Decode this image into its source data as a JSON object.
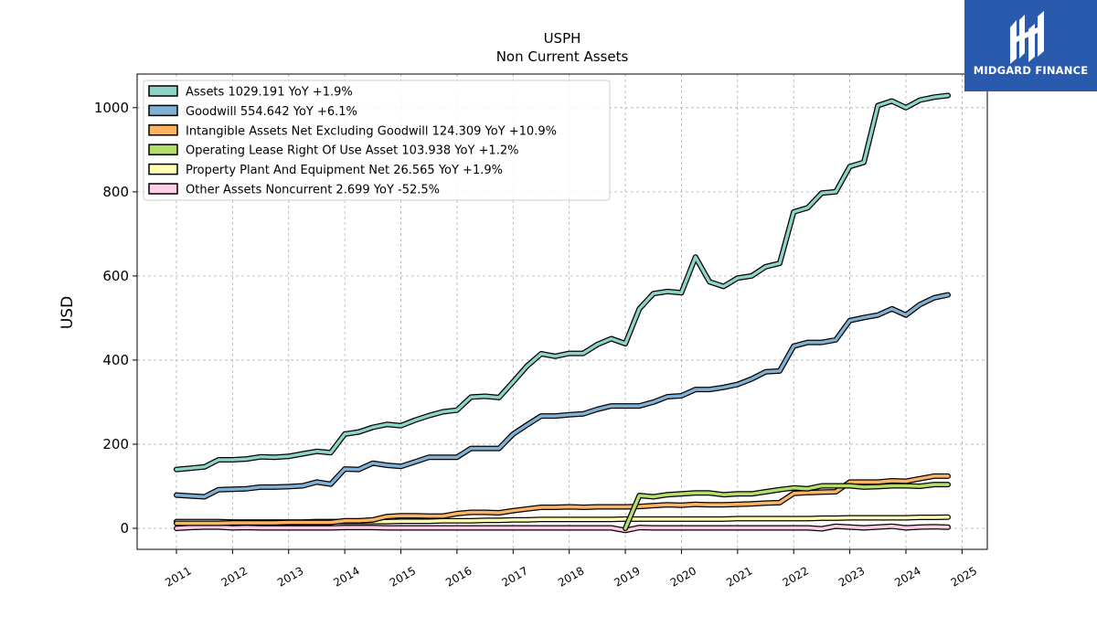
{
  "brand": {
    "name": "MIDGARD FINANCE",
    "bg_color": "#2a5aad",
    "icon": "midgard-logo-icon"
  },
  "chart_data": {
    "type": "line",
    "title": "USPH",
    "subtitle": "Non Current  Assets",
    "ylabel": "USD",
    "xlabel": "",
    "xlim": [
      2010.3,
      2025.45
    ],
    "ylim": [
      -50,
      1080
    ],
    "yticks": [
      0,
      200,
      400,
      600,
      800,
      1000
    ],
    "xticks": [
      2011,
      2012,
      2013,
      2014,
      2015,
      2016,
      2017,
      2018,
      2019,
      2020,
      2021,
      2022,
      2023,
      2024,
      2025
    ],
    "grid": true,
    "legend_position": "top-left",
    "series": [
      {
        "name": "Assets",
        "legend": "Assets  1029.191 YoY +1.9%",
        "color": "#8dd3c7",
        "x": [
          2011.0,
          2011.25,
          2011.5,
          2011.75,
          2012.0,
          2012.25,
          2012.5,
          2012.75,
          2013.0,
          2013.25,
          2013.5,
          2013.75,
          2014.0,
          2014.25,
          2014.5,
          2014.75,
          2015.0,
          2015.25,
          2015.5,
          2015.75,
          2016.0,
          2016.25,
          2016.5,
          2016.75,
          2017.0,
          2017.25,
          2017.5,
          2017.75,
          2018.0,
          2018.25,
          2018.5,
          2018.75,
          2019.0,
          2019.25,
          2019.5,
          2019.75,
          2020.0,
          2020.25,
          2020.5,
          2020.75,
          2021.0,
          2021.25,
          2021.5,
          2021.75,
          2022.0,
          2022.25,
          2022.5,
          2022.75,
          2023.0,
          2023.25,
          2023.5,
          2023.75,
          2024.0,
          2024.25,
          2024.5,
          2024.75
        ],
        "y": [
          140,
          143,
          146,
          163,
          163,
          165,
          170,
          169,
          171,
          177,
          183,
          180,
          224,
          229,
          240,
          247,
          244,
          257,
          268,
          277,
          281,
          312,
          314,
          311,
          348,
          386,
          415,
          409,
          416,
          416,
          437,
          451,
          439,
          522,
          558,
          563,
          560,
          645,
          586,
          575,
          595,
          600,
          622,
          630,
          752,
          762,
          797,
          800,
          860,
          870,
          1005,
          1016,
          1000,
          1018,
          1025,
          1029
        ]
      },
      {
        "name": "Goodwill",
        "legend": "Goodwill  554.642 YoY +6.1%",
        "color": "#80b1d3",
        "x": [
          2011.0,
          2011.25,
          2011.5,
          2011.75,
          2012.0,
          2012.25,
          2012.5,
          2012.75,
          2013.0,
          2013.25,
          2013.5,
          2013.75,
          2014.0,
          2014.25,
          2014.5,
          2014.75,
          2015.0,
          2015.25,
          2015.5,
          2015.75,
          2016.0,
          2016.25,
          2016.5,
          2016.75,
          2017.0,
          2017.25,
          2017.5,
          2017.75,
          2018.0,
          2018.25,
          2018.5,
          2018.75,
          2019.0,
          2019.25,
          2019.5,
          2019.75,
          2020.0,
          2020.25,
          2020.5,
          2020.75,
          2021.0,
          2021.25,
          2021.5,
          2021.75,
          2022.0,
          2022.25,
          2022.5,
          2022.75,
          2023.0,
          2023.25,
          2023.5,
          2023.75,
          2024.0,
          2024.25,
          2024.5,
          2024.75
        ],
        "y": [
          79,
          77,
          75,
          92,
          93,
          94,
          98,
          98,
          99,
          101,
          110,
          105,
          141,
          140,
          155,
          150,
          147,
          158,
          169,
          169,
          169,
          190,
          190,
          190,
          224,
          246,
          267,
          267,
          270,
          272,
          283,
          291,
          291,
          291,
          300,
          313,
          315,
          330,
          330,
          335,
          342,
          355,
          372,
          374,
          433,
          442,
          442,
          448,
          494,
          501,
          507,
          522,
          507,
          532,
          548,
          555
        ]
      },
      {
        "name": "Intangible Assets Net Excluding Goodwill",
        "legend": "Intangible Assets Net Excluding Goodwill  124.309 YoY +10.9%",
        "color": "#fdb462",
        "x": [
          2011.0,
          2011.25,
          2011.5,
          2011.75,
          2012.0,
          2012.25,
          2012.5,
          2012.75,
          2013.0,
          2013.25,
          2013.5,
          2013.75,
          2014.0,
          2014.25,
          2014.5,
          2014.75,
          2015.0,
          2015.25,
          2015.5,
          2015.75,
          2016.0,
          2016.25,
          2016.5,
          2016.75,
          2017.0,
          2017.25,
          2017.5,
          2017.75,
          2018.0,
          2018.25,
          2018.5,
          2018.75,
          2019.0,
          2019.25,
          2019.5,
          2019.75,
          2020.0,
          2020.25,
          2020.5,
          2020.75,
          2021.0,
          2021.25,
          2021.5,
          2021.75,
          2022.0,
          2022.25,
          2022.5,
          2022.75,
          2023.0,
          2023.25,
          2023.5,
          2023.75,
          2024.0,
          2024.25,
          2024.5,
          2024.75
        ],
        "y": [
          12,
          12,
          12,
          12,
          13,
          13,
          13,
          13,
          14,
          14,
          14,
          14,
          18,
          18,
          20,
          28,
          30,
          30,
          29,
          29,
          35,
          38,
          38,
          37,
          42,
          46,
          50,
          50,
          51,
          50,
          51,
          51,
          51,
          52,
          54,
          56,
          55,
          57,
          56,
          56,
          57,
          58,
          60,
          61,
          83,
          85,
          86,
          87,
          110,
          110,
          110,
          113,
          112,
          118,
          124,
          124
        ]
      },
      {
        "name": "Operating Lease Right Of Use Asset",
        "legend": "Operating Lease Right Of Use Asset  103.938 YoY +1.2%",
        "color": "#b3de69",
        "x": [
          2019.0,
          2019.25,
          2019.5,
          2019.75,
          2020.0,
          2020.25,
          2020.5,
          2020.75,
          2021.0,
          2021.25,
          2021.5,
          2021.75,
          2022.0,
          2022.25,
          2022.5,
          2022.75,
          2023.0,
          2023.25,
          2023.5,
          2023.75,
          2024.0,
          2024.25,
          2024.5,
          2024.75
        ],
        "y": [
          0,
          78,
          75,
          80,
          82,
          84,
          84,
          80,
          82,
          82,
          87,
          92,
          96,
          94,
          101,
          101,
          101,
          98,
          99,
          101,
          101,
          100,
          104,
          104
        ]
      },
      {
        "name": "Property Plant And Equipment Net",
        "legend": "Property Plant And Equipment Net  26.565 YoY +1.9%",
        "color": "#ffffb3",
        "x": [
          2011.0,
          2011.25,
          2011.5,
          2011.75,
          2012.0,
          2012.25,
          2012.5,
          2012.75,
          2013.0,
          2013.25,
          2013.5,
          2013.75,
          2014.0,
          2014.25,
          2014.5,
          2014.75,
          2015.0,
          2015.25,
          2015.5,
          2015.75,
          2016.0,
          2016.25,
          2016.5,
          2016.75,
          2017.0,
          2017.25,
          2017.5,
          2017.75,
          2018.0,
          2018.25,
          2018.5,
          2018.75,
          2019.0,
          2019.25,
          2019.5,
          2019.75,
          2020.0,
          2020.25,
          2020.5,
          2020.75,
          2021.0,
          2021.25,
          2021.5,
          2021.75,
          2022.0,
          2022.25,
          2022.5,
          2022.75,
          2023.0,
          2023.25,
          2023.5,
          2023.75,
          2024.0,
          2024.25,
          2024.5,
          2024.75
        ],
        "y": [
          16,
          16,
          16,
          16,
          15,
          15,
          15,
          15,
          15,
          15,
          16,
          16,
          16,
          16,
          16,
          16,
          17,
          17,
          17,
          18,
          18,
          18,
          19,
          19,
          20,
          20,
          21,
          21,
          21,
          21,
          21,
          21,
          22,
          22,
          22,
          22,
          22,
          22,
          22,
          22,
          23,
          23,
          23,
          23,
          23,
          23,
          24,
          24,
          25,
          25,
          25,
          25,
          25,
          26,
          26,
          26.6
        ]
      },
      {
        "name": "Other Assets Noncurrent",
        "legend": "Other Assets Noncurrent  2.699 YoY -52.5%",
        "color": "#fccde5",
        "x": [
          2011.0,
          2011.25,
          2011.5,
          2011.75,
          2012.0,
          2012.25,
          2012.5,
          2012.75,
          2013.0,
          2013.25,
          2013.5,
          2013.75,
          2014.0,
          2014.25,
          2014.5,
          2014.75,
          2015.0,
          2015.25,
          2015.5,
          2015.75,
          2016.0,
          2016.25,
          2016.5,
          2016.75,
          2017.0,
          2017.25,
          2017.5,
          2017.75,
          2018.0,
          2018.25,
          2018.5,
          2018.75,
          2019.0,
          2019.25,
          2019.5,
          2019.75,
          2020.0,
          2020.25,
          2020.5,
          2020.75,
          2021.0,
          2021.25,
          2021.5,
          2021.75,
          2022.0,
          2022.25,
          2022.5,
          2022.75,
          2023.0,
          2023.25,
          2023.5,
          2023.75,
          2024.0,
          2024.25,
          2024.5,
          2024.75
        ],
        "y": [
          0,
          2,
          3,
          3,
          1,
          2,
          1,
          1,
          1,
          1,
          1,
          1,
          2,
          2,
          2,
          1,
          1,
          1,
          1,
          1,
          1,
          1,
          1,
          1,
          1,
          1,
          1,
          1,
          1,
          1,
          1,
          1,
          -5,
          2,
          1,
          1,
          1,
          1,
          1,
          1,
          1,
          1,
          1,
          1,
          1,
          1,
          -1,
          5,
          3,
          1,
          3,
          5,
          1,
          3,
          4,
          2.7
        ]
      }
    ]
  }
}
